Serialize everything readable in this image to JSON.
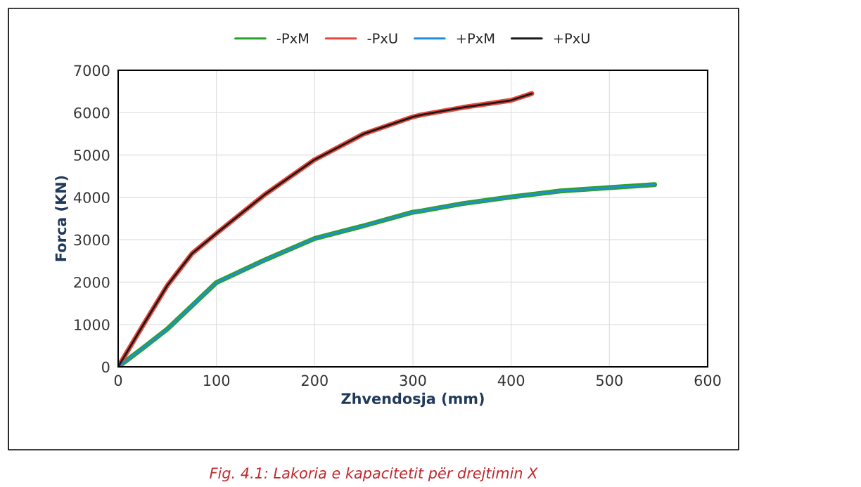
{
  "chart_data": {
    "type": "line",
    "xlabel": "Zhvendosja (mm)",
    "ylabel": "Forca (KN)",
    "xlim": [
      0,
      600
    ],
    "xticks": [
      0,
      100,
      200,
      300,
      400,
      500,
      600
    ],
    "ylim": [
      0,
      7000
    ],
    "yticks": [
      0,
      1000,
      2000,
      3000,
      4000,
      5000,
      6000,
      7000
    ],
    "grid": true,
    "legend": "top",
    "marker": "none",
    "line_style": "solid",
    "series": [
      {
        "name": "-PxM",
        "color": "#2ca02c",
        "x": [
          0,
          25,
          50,
          75,
          100,
          150,
          200,
          250,
          300,
          309,
          350,
          400,
          450,
          500,
          546
        ],
        "values": [
          0,
          440,
          890,
          1440,
          1990,
          2530,
          3030,
          3330,
          3650,
          3680,
          3850,
          4010,
          4150,
          4230,
          4300
        ]
      },
      {
        "name": "-PxU",
        "color": "#e8483b",
        "x": [
          0,
          25,
          50,
          75,
          100,
          150,
          200,
          250,
          300,
          309,
          350,
          400,
          421
        ],
        "values": [
          0,
          970,
          1920,
          2670,
          3150,
          4080,
          4890,
          5500,
          5900,
          5950,
          6120,
          6290,
          6450
        ]
      },
      {
        "name": "+PxM",
        "color": "#1f8fd8",
        "x": [
          0,
          25,
          50,
          75,
          100,
          150,
          200,
          250,
          300,
          309,
          350,
          400,
          450,
          500,
          546
        ],
        "values": [
          0,
          440,
          890,
          1440,
          1990,
          2530,
          3030,
          3330,
          3650,
          3680,
          3850,
          4010,
          4150,
          4230,
          4300
        ]
      },
      {
        "name": "+PxU",
        "color": "#1a1a1a",
        "x": [
          0,
          25,
          50,
          75,
          100,
          150,
          200,
          250,
          300,
          309,
          350,
          400,
          421
        ],
        "values": [
          0,
          970,
          1920,
          2670,
          3150,
          4080,
          4890,
          5500,
          5900,
          5950,
          6120,
          6290,
          6450
        ]
      }
    ],
    "annotations": [
      "Fig. 4.1: Lakoria e kapacitetit për drejtimin X"
    ]
  }
}
